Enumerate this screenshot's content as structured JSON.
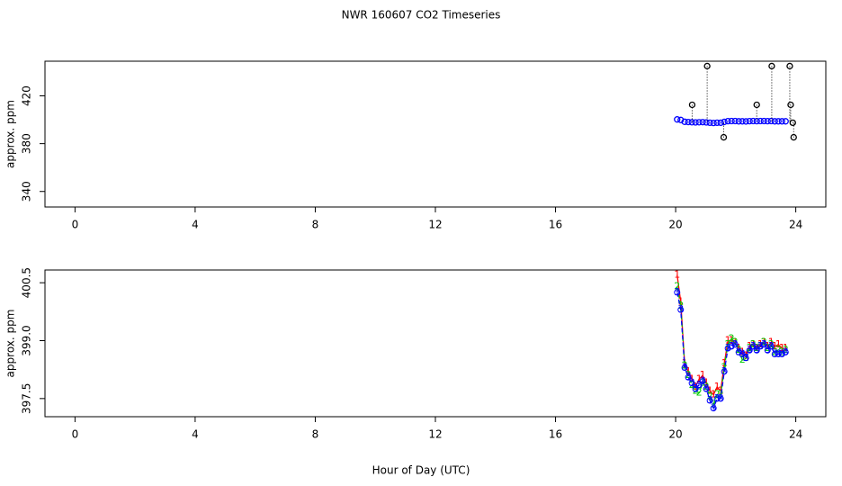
{
  "chart_data": [
    {
      "type": "scatter",
      "title": "NWR  160607  CO2 Timeseries",
      "y_label": "approx. ppm",
      "xlim": [
        -1,
        25
      ],
      "xticks": [
        0,
        4,
        8,
        12,
        16,
        20,
        24
      ],
      "ylim": [
        327,
        449
      ],
      "yticks": [
        340,
        380,
        420
      ],
      "series": [
        {
          "color": "#0000ff",
          "x": [
            20.05,
            20.17,
            20.3,
            20.42,
            20.54,
            20.66,
            20.78,
            20.9,
            21.02,
            21.14,
            21.26,
            21.38,
            21.5,
            21.62,
            21.74,
            21.86,
            21.98,
            22.1,
            22.22,
            22.34,
            22.46,
            22.58,
            22.7,
            22.82,
            22.94,
            23.06,
            23.18,
            23.3,
            23.42,
            23.54,
            23.66
          ],
          "values": [
            400.3,
            399.8,
            398.3,
            398.1,
            397.9,
            397.8,
            397.9,
            398,
            397.8,
            397.5,
            397.3,
            397.5,
            397.5,
            398.2,
            398.8,
            398.9,
            398.9,
            398.7,
            398.7,
            398.6,
            398.8,
            398.9,
            398.8,
            398.9,
            398.9,
            398.8,
            398.9,
            398.7,
            398.7,
            398.7,
            398.7
          ]
        },
        {
          "color": "#000000",
          "x": [
            20.55,
            21.05,
            21.6,
            22.7,
            23.2,
            23.8,
            23.83,
            23.9,
            23.93
          ],
          "values": [
            412.5,
            444.9,
            385.3,
            412.5,
            444.9,
            444.9,
            412.5,
            397.5,
            385.3
          ]
        }
      ]
    },
    {
      "type": "line",
      "y_label": "approx. ppm",
      "x_label": "Hour of Day (UTC)",
      "xlim": [
        -1,
        25
      ],
      "xticks": [
        0,
        4,
        8,
        12,
        16,
        20,
        24
      ],
      "ylim": [
        397.03,
        400.83
      ],
      "yticks": [
        {
          "value": 397.5,
          "label": "397.5"
        },
        {
          "value": 399,
          "label": "399.0"
        },
        {
          "value": 400.5,
          "label": "400.5"
        }
      ],
      "x": [
        20.05,
        20.17,
        20.3,
        20.42,
        20.54,
        20.66,
        20.78,
        20.9,
        21.02,
        21.14,
        21.26,
        21.38,
        21.5,
        21.62,
        21.74,
        21.86,
        21.98,
        22.1,
        22.22,
        22.34,
        22.46,
        22.58,
        22.7,
        22.82,
        22.94,
        23.06,
        23.18,
        23.3,
        23.42,
        23.54,
        23.66
      ],
      "series": [
        {
          "marker": "1",
          "color": "#ff0000",
          "dash": false,
          "values": [
            400.7,
            400,
            398.4,
            398.2,
            398,
            397.8,
            398,
            398.1,
            397.9,
            397.7,
            397.6,
            397.8,
            397.7,
            398.4,
            399,
            399,
            398.95,
            398.8,
            398.7,
            398.6,
            398.85,
            398.9,
            398.8,
            398.9,
            398.95,
            398.85,
            398.95,
            398.85,
            398.9,
            398.8,
            398.8
          ]
        },
        {
          "marker": "2",
          "color": "#00cc00",
          "dash": true,
          "values": [
            400.4,
            399.9,
            398.35,
            398.1,
            397.85,
            397.7,
            397.65,
            397.9,
            397.8,
            397.55,
            397.35,
            397.6,
            397.6,
            398.3,
            398.9,
            399.05,
            398.95,
            398.75,
            398.5,
            398.55,
            398.8,
            398.9,
            398.8,
            398.85,
            398.95,
            398.8,
            398.9,
            398.7,
            398.75,
            398.7,
            398.75
          ]
        },
        {
          "marker": "3",
          "color": "#0000ff",
          "dash": true,
          "values": [
            400.25,
            399.8,
            398.3,
            398.05,
            397.9,
            397.75,
            397.85,
            397.95,
            397.75,
            397.45,
            397.25,
            397.5,
            397.5,
            398.2,
            398.8,
            398.85,
            398.9,
            398.7,
            398.65,
            398.55,
            398.75,
            398.85,
            398.75,
            398.85,
            398.9,
            398.75,
            398.85,
            398.65,
            398.65,
            398.65,
            398.7
          ]
        }
      ]
    }
  ]
}
